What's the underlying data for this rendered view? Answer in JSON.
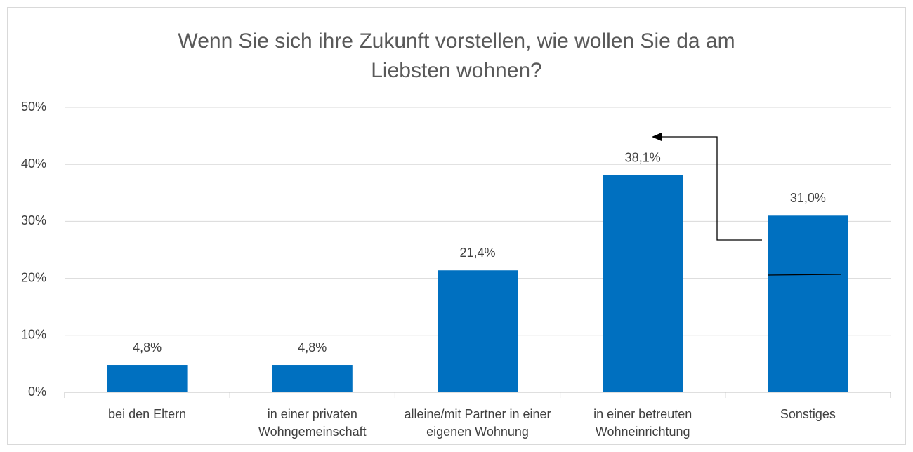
{
  "chart_data": {
    "type": "bar",
    "title": "Wenn Sie sich ihre Zukunft vorstellen, wie wollen Sie da am Liebsten wohnen?",
    "categories": [
      "bei den Eltern",
      "in einer privaten Wohngemeinschaft",
      "alleine/mit Partner in einer eigenen Wohnung",
      "in einer betreuten Wohneinrichtung",
      "Sonstiges"
    ],
    "values": [
      4.8,
      4.8,
      21.4,
      38.1,
      31.0
    ],
    "value_labels": [
      "4,8%",
      "4,8%",
      "21,4%",
      "38,1%",
      "31,0%"
    ],
    "color": "#0070c0",
    "ylim": [
      0,
      50
    ],
    "yticks": [
      {
        "value": 0,
        "label": "0%"
      },
      {
        "value": 10,
        "label": "10%"
      },
      {
        "value": 20,
        "label": "20%"
      },
      {
        "value": 30,
        "label": "30%"
      },
      {
        "value": 40,
        "label": "40%"
      },
      {
        "value": 50,
        "label": "50%"
      }
    ],
    "grid": true
  }
}
